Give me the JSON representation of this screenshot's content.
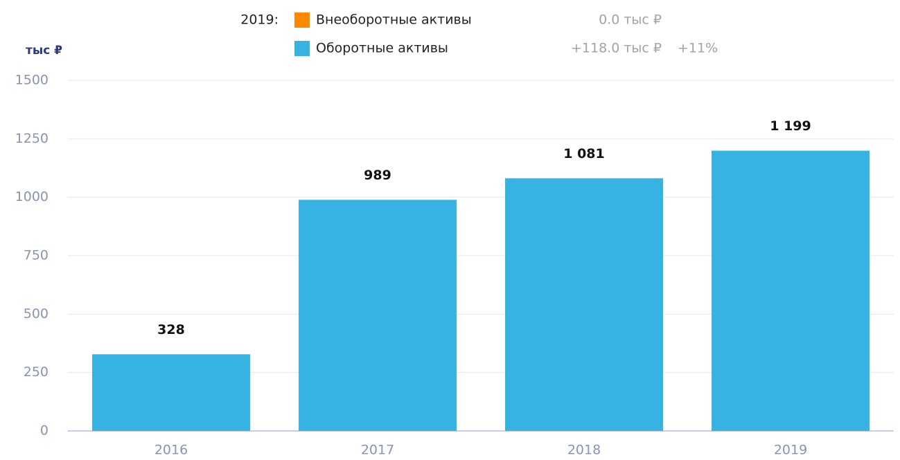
{
  "chart_data": {
    "type": "stacked_bar",
    "unit_label": "тыс ₽",
    "legend_period": "2019:",
    "categories": [
      "2016",
      "2017",
      "2018",
      "2019"
    ],
    "series": [
      {
        "name": "Внеоборотные активы",
        "color": "#ff8a00",
        "values": [
          0,
          0,
          0,
          0
        ],
        "change": "0.0 тыс ₽"
      },
      {
        "name": "Оборотные активы",
        "color": "#36b2e3",
        "values": [
          328,
          989,
          1081,
          1199
        ],
        "value_labels": [
          "328",
          "989",
          "1 081",
          "1 199"
        ],
        "change": "+118.0 тыс ₽",
        "change_pct": "+11%"
      }
    ],
    "ylim": [
      0,
      1500
    ],
    "yticks": [
      0,
      250,
      500,
      750,
      1000,
      1250,
      1500
    ],
    "grid": true
  }
}
